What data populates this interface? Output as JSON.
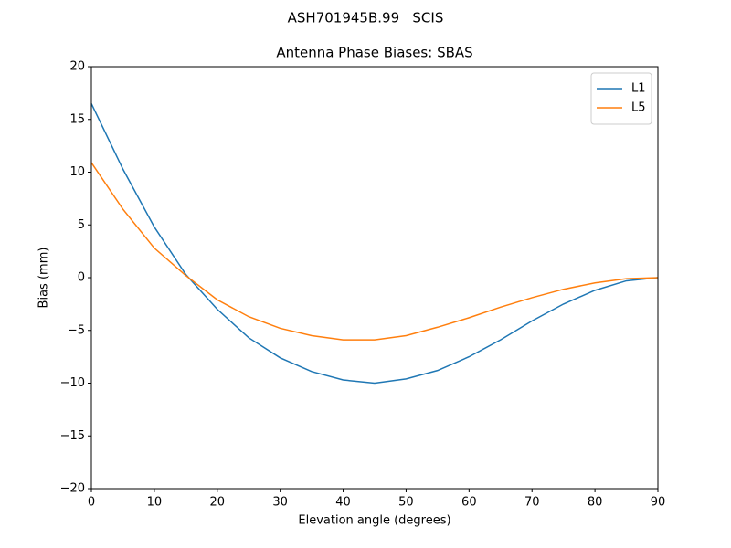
{
  "chart_data": {
    "type": "line",
    "suptitle": "ASH701945B.99   SCIS",
    "title": "Antenna Phase Biases: SBAS",
    "xlabel": "Elevation angle (degrees)",
    "ylabel": "Bias (mm)",
    "x": [
      0,
      5,
      10,
      15,
      20,
      25,
      30,
      35,
      40,
      45,
      50,
      55,
      60,
      65,
      70,
      75,
      80,
      85,
      90
    ],
    "series": [
      {
        "name": "L1",
        "color": "#1f77b4",
        "values": [
          16.5,
          10.3,
          4.8,
          0.3,
          -3.0,
          -5.7,
          -7.6,
          -8.9,
          -9.7,
          -10.0,
          -9.6,
          -8.8,
          -7.5,
          -5.9,
          -4.1,
          -2.5,
          -1.2,
          -0.3,
          0
        ]
      },
      {
        "name": "L5",
        "color": "#ff7f0e",
        "values": [
          10.9,
          6.5,
          2.8,
          0.2,
          -2.1,
          -3.7,
          -4.8,
          -5.5,
          -5.9,
          -5.9,
          -5.5,
          -4.7,
          -3.8,
          -2.8,
          -1.9,
          -1.1,
          -0.5,
          -0.1,
          0
        ]
      }
    ],
    "xlim": [
      0,
      90
    ],
    "xticks": [
      0,
      10,
      20,
      30,
      40,
      50,
      60,
      70,
      80,
      90
    ],
    "ylim": [
      -20,
      20
    ],
    "yticks": [
      {
        "value": -20,
        "label": "−20"
      },
      {
        "value": -15,
        "label": "−15"
      },
      {
        "value": -10,
        "label": "−10"
      },
      {
        "value": -5,
        "label": "−5"
      },
      0,
      5,
      10,
      15,
      20
    ],
    "legend": "upper-right",
    "grid": false
  }
}
